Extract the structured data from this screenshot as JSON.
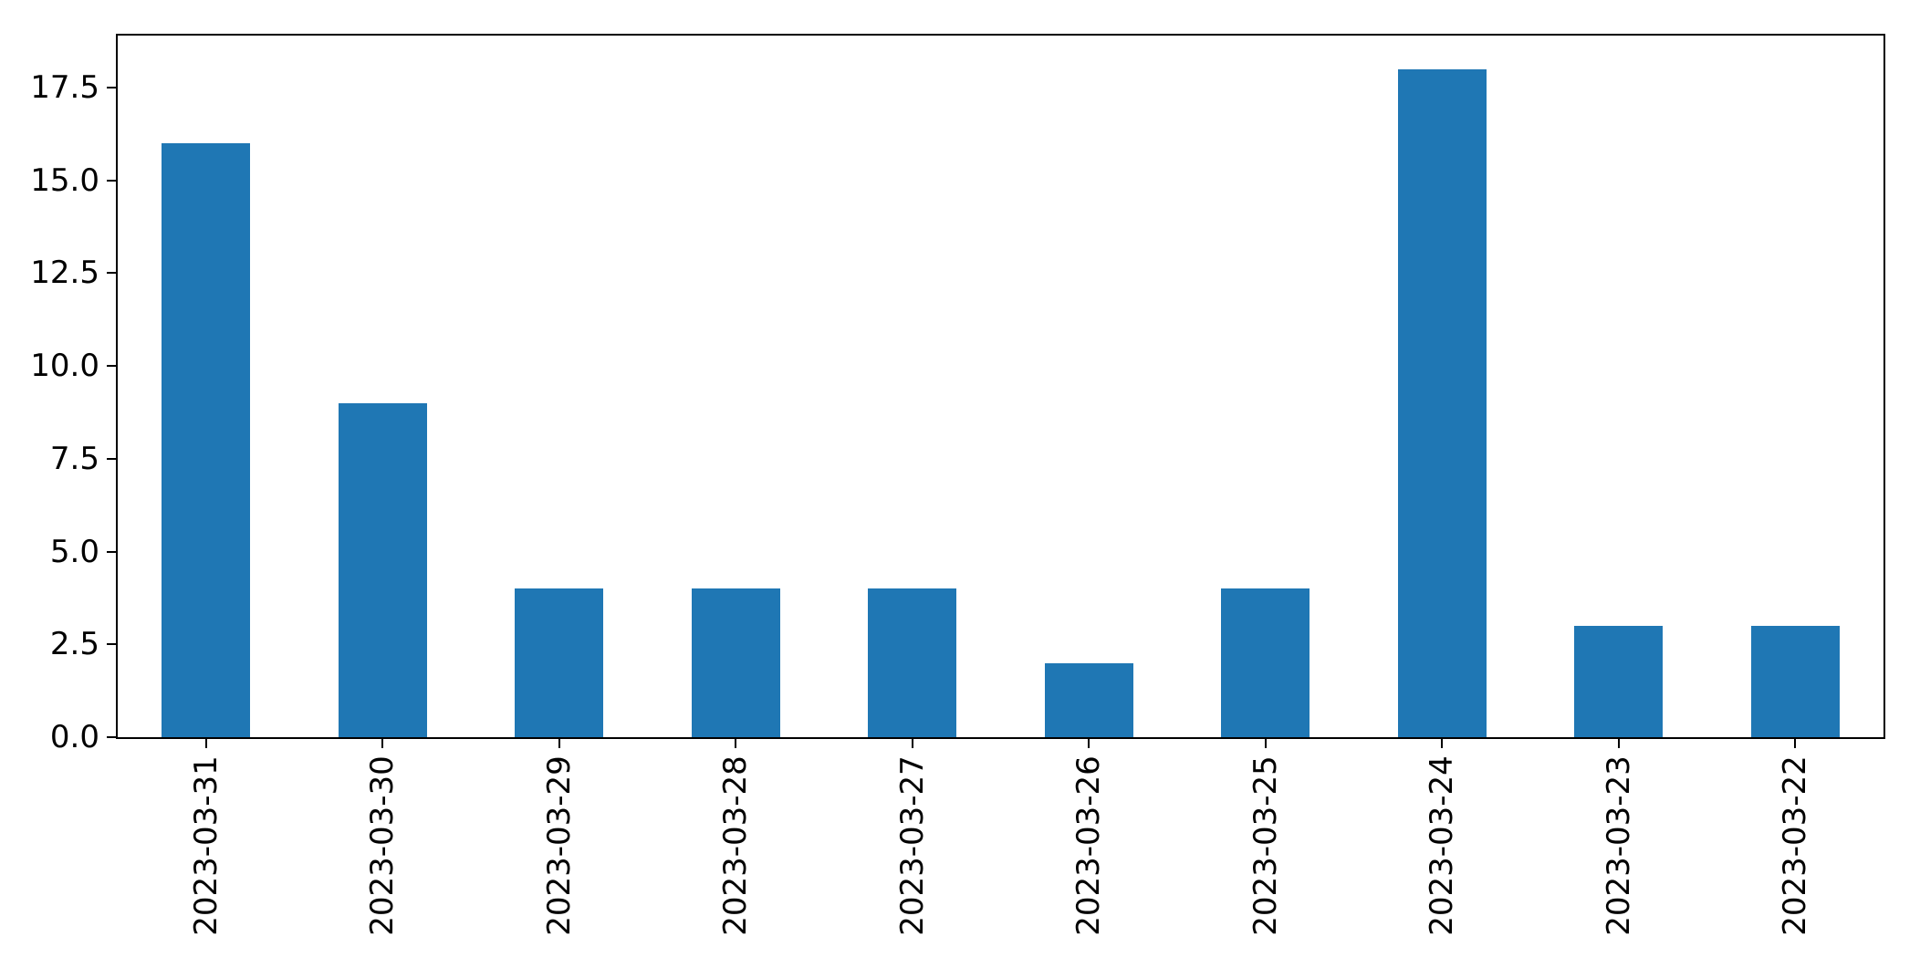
{
  "chart_data": {
    "type": "bar",
    "title": "",
    "xlabel": "",
    "ylabel": "",
    "categories": [
      "2023-03-31",
      "2023-03-30",
      "2023-03-29",
      "2023-03-28",
      "2023-03-27",
      "2023-03-26",
      "2023-03-25",
      "2023-03-24",
      "2023-03-23",
      "2023-03-22"
    ],
    "values": [
      16,
      9,
      4,
      4,
      4,
      2,
      4,
      18,
      3,
      3
    ],
    "ylim": [
      0,
      18.9
    ],
    "yticks": [
      0.0,
      2.5,
      5.0,
      7.5,
      10.0,
      12.5,
      15.0,
      17.5
    ],
    "ytick_labels": [
      "0.0",
      "2.5",
      "5.0",
      "7.5",
      "10.0",
      "12.5",
      "15.0",
      "17.5"
    ],
    "x_tick_label_rotation": 90,
    "bar_width_fraction": 0.5,
    "grid": false,
    "legend_position": "none",
    "colors": {
      "bar": "#1f77b4",
      "axis": "#000000",
      "tick_text": "#000000",
      "background": "#ffffff"
    }
  }
}
